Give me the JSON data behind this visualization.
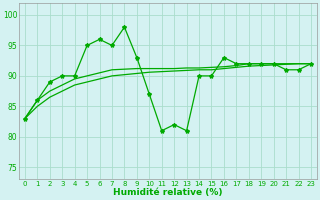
{
  "x": [
    0,
    1,
    2,
    3,
    4,
    5,
    6,
    7,
    8,
    9,
    10,
    11,
    12,
    13,
    14,
    15,
    16,
    17,
    18,
    19,
    20,
    21,
    22,
    23
  ],
  "y_main": [
    83,
    86,
    89,
    90,
    90,
    95,
    96,
    95,
    98,
    93,
    87,
    81,
    82,
    81,
    90,
    90,
    93,
    92,
    92,
    92,
    92,
    91,
    91,
    92
  ],
  "y_smooth_low": [
    83,
    85,
    86.5,
    87.5,
    88.5,
    89,
    89.5,
    90,
    90.2,
    90.4,
    90.6,
    90.7,
    90.8,
    90.9,
    91,
    91,
    91.2,
    91.4,
    91.6,
    91.7,
    91.8,
    91.9,
    92,
    92
  ],
  "y_smooth_high": [
    83,
    86,
    87.5,
    88.5,
    89.5,
    90,
    90.5,
    91,
    91.1,
    91.2,
    91.2,
    91.2,
    91.2,
    91.3,
    91.3,
    91.4,
    91.5,
    91.7,
    92,
    92,
    92,
    92,
    92,
    92
  ],
  "line_color": "#00aa00",
  "bg_color": "#d4f2f2",
  "grid_color": "#aaddcc",
  "xlabel": "Humidité relative (%)",
  "ylim": [
    73,
    102
  ],
  "yticks": [
    75,
    80,
    85,
    90,
    95,
    100
  ],
  "xlim": [
    -0.5,
    23.5
  ],
  "figsize": [
    3.2,
    2.0
  ],
  "dpi": 100
}
